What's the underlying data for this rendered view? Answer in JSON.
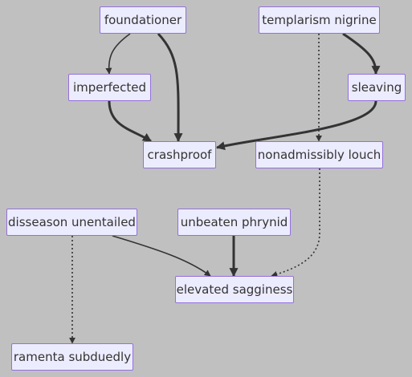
{
  "diagram": {
    "type": "flowchart",
    "colors": {
      "background": "#c0c0c0",
      "node_fill": "#ececff",
      "node_border": "#9370db",
      "node_text": "#333333",
      "edge": "#333333"
    },
    "nodes": {
      "foundationer": "foundationer",
      "templarism_nigrine": "templarism nigrine",
      "imperfected": "imperfected",
      "sleaving": "sleaving",
      "crashproof": "crashproof",
      "nonadmissibly_louch": "nonadmissibly louch",
      "disseason_unentailed": "disseason unentailed",
      "unbeaten_phrynid": "unbeaten phrynid",
      "elevated_sagginess": "elevated sagginess",
      "ramenta_subduedly": "ramenta subduedly"
    },
    "edges": [
      {
        "from": "foundationer",
        "to": "imperfected",
        "style": "solid"
      },
      {
        "from": "foundationer",
        "to": "crashproof",
        "style": "thick"
      },
      {
        "from": "imperfected",
        "to": "crashproof",
        "style": "thick"
      },
      {
        "from": "templarism nigrine",
        "to": "sleaving",
        "style": "thick"
      },
      {
        "from": "templarism nigrine",
        "to": "nonadmissibly louch",
        "style": "dotted"
      },
      {
        "from": "sleaving",
        "to": "crashproof",
        "style": "thick"
      },
      {
        "from": "nonadmissibly louch",
        "to": "elevated sagginess",
        "style": "dotted"
      },
      {
        "from": "disseason unentailed",
        "to": "elevated sagginess",
        "style": "solid"
      },
      {
        "from": "unbeaten phrynid",
        "to": "elevated sagginess",
        "style": "thick"
      },
      {
        "from": "disseason unentailed",
        "to": "ramenta subduedly",
        "style": "dotted"
      }
    ]
  }
}
